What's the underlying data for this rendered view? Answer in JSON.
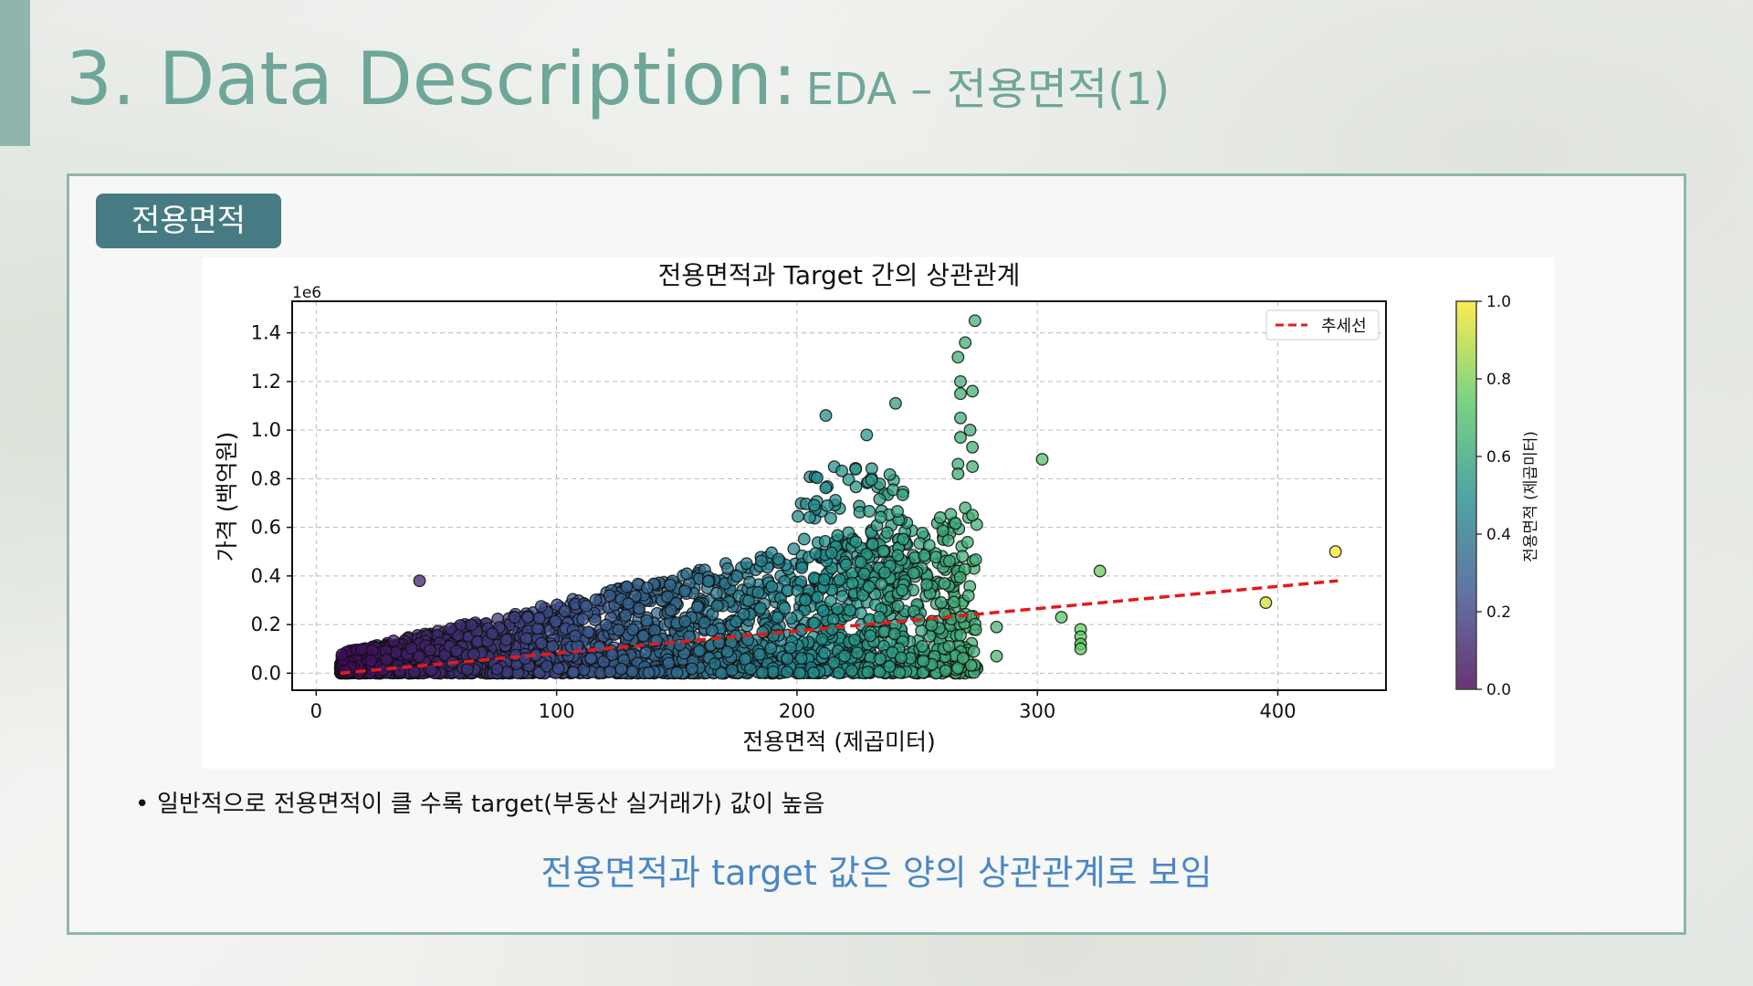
{
  "slide": {
    "title_main": "3. Data Description:",
    "title_sub": "EDA – 전용면적(1)",
    "tag": "전용면적",
    "bullet": "일반적으로 전용면적이 클 수록 target(부동산 실거래가) 값이 높음",
    "conclusion": "전용면적과 target 값은 양의 상관관계로 보임"
  },
  "chart_data": {
    "type": "scatter",
    "title": "전용면적과 Target 간의 상관관계",
    "xlabel": "전용면적 (제곱미터)",
    "ylabel": "가격 (백억원)",
    "y_offset_label": "1e6",
    "xlim": [
      -10,
      445
    ],
    "ylim": [
      -0.07,
      1.53
    ],
    "xticks": [
      0,
      100,
      200,
      300,
      400
    ],
    "yticks": [
      0.0,
      0.2,
      0.4,
      0.6,
      0.8,
      1.0,
      1.2,
      1.4
    ],
    "ytick_labels": [
      "0.0",
      "0.2",
      "0.4",
      "0.6",
      "0.8",
      "1.0",
      "1.2",
      "1.4"
    ],
    "grid": true,
    "legend": {
      "label": "추세선",
      "placement": "top-right"
    },
    "trendline": {
      "x": [
        10,
        425
      ],
      "y": [
        0.0,
        0.38
      ],
      "color": "#e31a1c"
    },
    "colorbar": {
      "label": "전용면적 (제곱미터)",
      "ticks": [
        "0.0",
        "0.2",
        "0.4",
        "0.6",
        "0.8",
        "1.0"
      ],
      "colormap": "viridis"
    },
    "outliers": [
      {
        "x": 302,
        "y": 0.88
      },
      {
        "x": 326,
        "y": 0.42
      },
      {
        "x": 395,
        "y": 0.29
      },
      {
        "x": 424,
        "y": 0.5
      },
      {
        "x": 310,
        "y": 0.23
      },
      {
        "x": 318,
        "y": 0.18
      },
      {
        "x": 318,
        "y": 0.15
      },
      {
        "x": 318,
        "y": 0.12
      },
      {
        "x": 318,
        "y": 0.1
      },
      {
        "x": 283,
        "y": 0.19
      },
      {
        "x": 283,
        "y": 0.07
      },
      {
        "x": 274,
        "y": 1.45
      },
      {
        "x": 270,
        "y": 1.36
      },
      {
        "x": 267,
        "y": 1.3
      },
      {
        "x": 268,
        "y": 1.2
      },
      {
        "x": 268,
        "y": 1.15
      },
      {
        "x": 273,
        "y": 1.16
      },
      {
        "x": 268,
        "y": 1.05
      },
      {
        "x": 272,
        "y": 1.0
      },
      {
        "x": 268,
        "y": 0.97
      },
      {
        "x": 273,
        "y": 0.93
      },
      {
        "x": 267,
        "y": 0.86
      },
      {
        "x": 273,
        "y": 0.85
      },
      {
        "x": 267,
        "y": 0.82
      },
      {
        "x": 270,
        "y": 0.68
      },
      {
        "x": 273,
        "y": 0.65
      },
      {
        "x": 212,
        "y": 1.06
      },
      {
        "x": 241,
        "y": 1.11
      },
      {
        "x": 229,
        "y": 0.98
      },
      {
        "x": 43,
        "y": 0.38
      }
    ]
  }
}
